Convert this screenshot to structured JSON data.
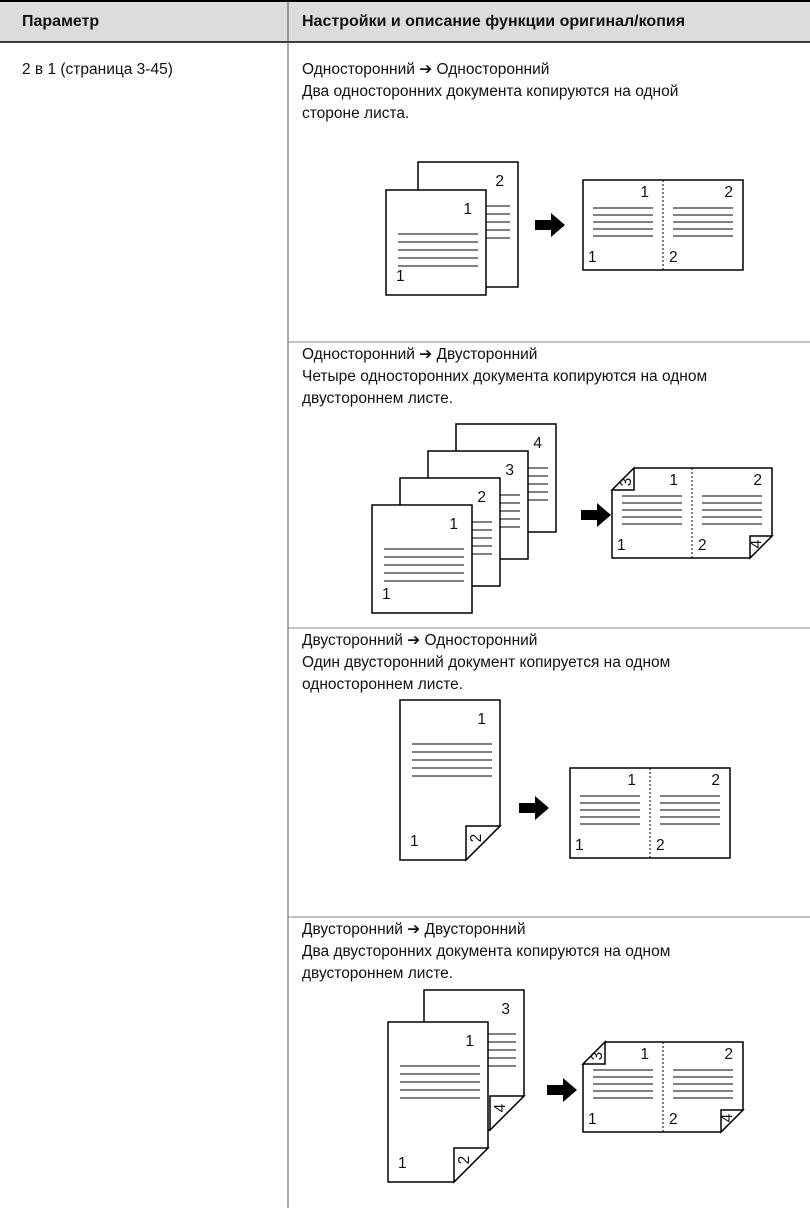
{
  "header": {
    "col1": "Параметр",
    "col2": "Настройки и описание функции оригинал/копия"
  },
  "parameter": "2 в 1 (страница 3-45)",
  "sections": [
    {
      "mode": "Односторонний ➔ Односторонний",
      "description": [
        "Два односторонних документа копируются на одной",
        "стороне листа."
      ],
      "labels": [
        "1",
        "2"
      ]
    },
    {
      "mode": "Односторонний ➔ Двусторонний",
      "description": [
        "Четыре односторонних документа копируются на одном",
        "двустороннем листе."
      ],
      "labels": [
        "1",
        "2",
        "3",
        "4"
      ]
    },
    {
      "mode": "Двусторонний ➔ Односторонний",
      "description": [
        "Один двусторонний документ копируется на одном",
        "одностороннем листе."
      ],
      "labels": [
        "1",
        "2"
      ]
    },
    {
      "mode": "Двусторонний ➔ Двусторонний",
      "description": [
        "Два двусторонних документа копируются на одном",
        "двустороннем листе."
      ],
      "labels": [
        "1",
        "2",
        "3",
        "4"
      ]
    }
  ]
}
